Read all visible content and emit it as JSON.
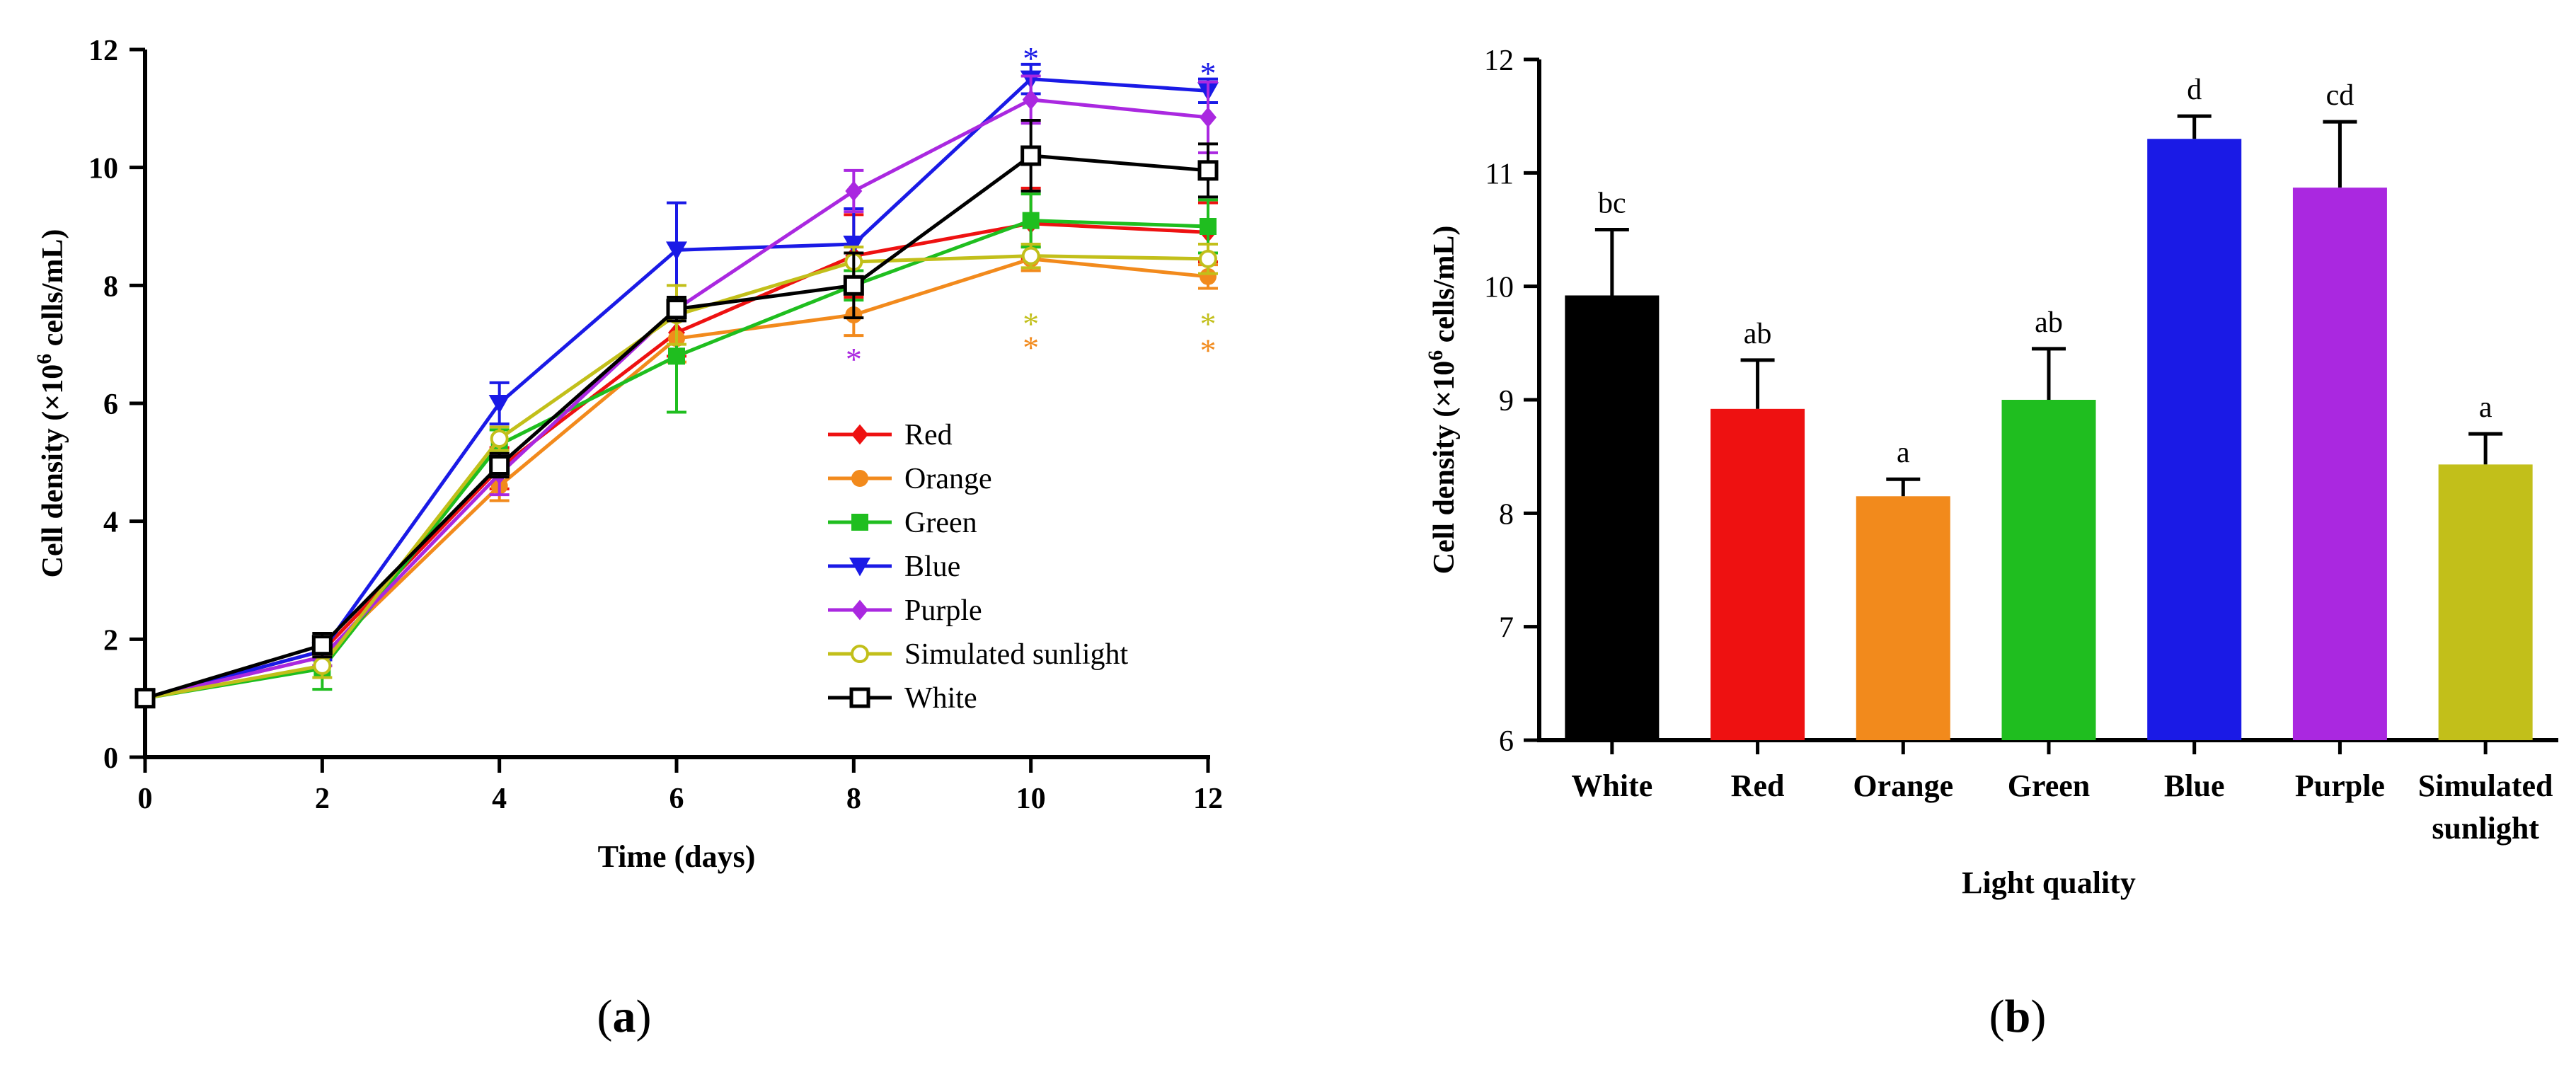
{
  "colors": {
    "Red": "#ee1111",
    "Orange": "#f28a1c",
    "Green": "#1fbe1f",
    "Blue": "#1a1ae6",
    "Purple": "#aa28e0",
    "Simulated sunlight": "#c2bf1a",
    "White": "#000000"
  },
  "chart_data": [
    {
      "id": "a",
      "type": "line",
      "panel_label": "(a)",
      "panel_letter": "a",
      "title": "",
      "xlabel": "Time (days)",
      "ylabel": "Cell density (×10⁶ cells/mL)",
      "ylabel_parts": {
        "pre": "Cell density (×10",
        "sup": "6",
        "post": " cells/mL)"
      },
      "xlim": [
        0,
        12
      ],
      "ylim": [
        0,
        12
      ],
      "xticks": [
        0,
        2,
        4,
        6,
        8,
        10,
        12
      ],
      "yticks": [
        0,
        2,
        4,
        6,
        8,
        10,
        12
      ],
      "x": [
        0,
        2,
        4,
        6,
        8,
        10,
        12
      ],
      "legend_position": "lower-right",
      "series": [
        {
          "name": "Red",
          "marker": "diamond",
          "values": [
            1.0,
            1.8,
            4.9,
            7.2,
            8.5,
            9.05,
            8.9
          ],
          "error": [
            0.05,
            0.15,
            0.35,
            0.4,
            0.7,
            0.6,
            0.5
          ]
        },
        {
          "name": "Orange",
          "marker": "circle",
          "values": [
            1.0,
            1.7,
            4.6,
            7.1,
            7.5,
            8.45,
            8.15
          ],
          "error": [
            0.05,
            0.15,
            0.25,
            0.4,
            0.35,
            0.2,
            0.2
          ]
        },
        {
          "name": "Green",
          "marker": "square",
          "values": [
            1.0,
            1.5,
            5.3,
            6.8,
            8.0,
            9.1,
            9.0
          ],
          "error": [
            0.05,
            0.35,
            0.25,
            0.95,
            0.25,
            0.45,
            0.45
          ]
        },
        {
          "name": "Blue",
          "marker": "triangle-down",
          "values": [
            1.0,
            1.8,
            6.0,
            8.6,
            8.7,
            11.5,
            11.3
          ],
          "error": [
            0.05,
            0.15,
            0.35,
            0.8,
            0.6,
            0.25,
            0.2
          ]
        },
        {
          "name": "Purple",
          "marker": "diamond",
          "values": [
            1.0,
            1.7,
            4.8,
            7.6,
            9.6,
            11.15,
            10.85
          ],
          "error": [
            0.05,
            0.15,
            0.35,
            0.2,
            0.35,
            0.4,
            0.6
          ]
        },
        {
          "name": "Simulated sunlight",
          "marker": "circle-open",
          "values": [
            1.0,
            1.55,
            5.4,
            7.5,
            8.4,
            8.5,
            8.45
          ],
          "error": [
            0.05,
            0.2,
            0.2,
            0.5,
            0.25,
            0.2,
            0.25
          ]
        },
        {
          "name": "White",
          "marker": "square-open",
          "values": [
            1.0,
            1.9,
            4.95,
            7.6,
            8.0,
            10.2,
            9.95
          ],
          "error": [
            0.05,
            0.2,
            0.2,
            0.2,
            0.55,
            0.6,
            0.45
          ]
        }
      ],
      "annotations": [
        {
          "text": "*",
          "x": 10,
          "y": 12.0,
          "series": "Blue"
        },
        {
          "text": "*",
          "x": 12,
          "y": 11.75,
          "series": "Blue"
        },
        {
          "text": "*",
          "x": 8,
          "y": 6.9,
          "series": "Purple"
        },
        {
          "text": "*",
          "x": 10,
          "y": 7.5,
          "series": "Simulated sunlight"
        },
        {
          "text": "*",
          "x": 10,
          "y": 7.1,
          "series": "Orange"
        },
        {
          "text": "*",
          "x": 12,
          "y": 7.5,
          "series": "Simulated sunlight"
        },
        {
          "text": "*",
          "x": 12,
          "y": 7.05,
          "series": "Orange"
        }
      ]
    },
    {
      "id": "b",
      "type": "bar",
      "panel_label": "(b)",
      "panel_letter": "b",
      "title": "",
      "xlabel": "Light quality",
      "ylabel": "Cell density (×10⁶ cells/mL)",
      "ylabel_parts": {
        "pre": "Cell density (×10",
        "sup": "6",
        "post": " cells/mL)"
      },
      "ylim": [
        6,
        12
      ],
      "yticks": [
        6,
        7,
        8,
        9,
        10,
        11,
        12
      ],
      "categories": [
        "White",
        "Red",
        "Orange",
        "Green",
        "Blue",
        "Purple",
        "Simulated sunlight"
      ],
      "category_lines": [
        [
          "White"
        ],
        [
          "Red"
        ],
        [
          "Orange"
        ],
        [
          "Green"
        ],
        [
          "Blue"
        ],
        [
          "Purple"
        ],
        [
          "Simulated",
          "sunlight"
        ]
      ],
      "values": [
        9.92,
        8.92,
        8.15,
        9.0,
        11.3,
        10.87,
        8.43
      ],
      "error": [
        0.58,
        0.43,
        0.15,
        0.45,
        0.2,
        0.58,
        0.27
      ],
      "significance_letters": [
        "bc",
        "ab",
        "a",
        "ab",
        "d",
        "cd",
        "a"
      ]
    }
  ]
}
